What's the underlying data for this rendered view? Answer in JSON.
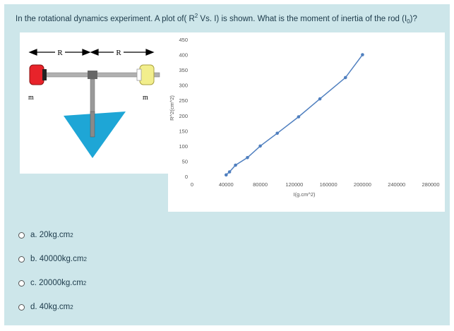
{
  "question": {
    "prefix": "In the rotational dynamics experiment. A plot of( R",
    "sup": "2",
    "middle": " Vs. I) is shown. What is the moment of inertia of the rod (I",
    "sub": "0",
    "suffix": ")?"
  },
  "figure": {
    "label_r_left": "R",
    "label_r_right": "R",
    "label_m_left": "m",
    "label_m_right": "m",
    "colors": {
      "left_mass": "#e8232a",
      "right_mass": "#f2ee8c",
      "base": "#1ea6d6",
      "rod": "#888888"
    }
  },
  "chart_data": {
    "type": "line",
    "xlabel": "I(g.cm^2)",
    "ylabel": "R^2(cm^2)",
    "xlim": [
      0,
      280000
    ],
    "ylim": [
      0,
      450
    ],
    "x_ticks": [
      "0",
      "40000",
      "80000",
      "120000",
      "160000",
      "200000",
      "240000",
      "280000"
    ],
    "y_ticks": [
      "0",
      "50",
      "100",
      "150",
      "200",
      "250",
      "300",
      "350",
      "400",
      "450"
    ],
    "series": [
      {
        "color": "#4f7fbf",
        "x": [
          40000,
          44000,
          51000,
          65000,
          80000,
          100000,
          125000,
          150000,
          180000,
          200000
        ],
        "y": [
          5,
          15,
          37,
          62,
          100,
          142,
          196,
          255,
          325,
          400
        ]
      }
    ],
    "grid": false
  },
  "options": [
    {
      "id": "a",
      "text": "a. 20kg.cm",
      "sup": "2"
    },
    {
      "id": "b",
      "text": "b. 40000kg.cm",
      "sup": "2"
    },
    {
      "id": "c",
      "text": "c. 20000kg.cm",
      "sup": "2"
    },
    {
      "id": "d",
      "text": "d. 40kg.cm",
      "sup": "2"
    }
  ]
}
